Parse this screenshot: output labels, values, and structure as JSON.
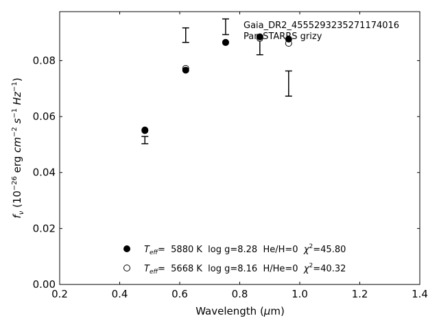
{
  "chart_data": {
    "type": "scatter",
    "title_lines": [
      "Gaia_DR2_4555293235271174016",
      "Pan-STARRS grizy"
    ],
    "xlabel": "Wavelength (μm)",
    "ylabel": "fν (10⁻²⁶ erg cm⁻² s⁻¹ Hz⁻¹)",
    "xlim": [
      0.2,
      1.4
    ],
    "ylim": [
      0.0,
      0.0975
    ],
    "x_ticks": [
      0.2,
      0.4,
      0.6,
      0.8,
      1.0,
      1.2,
      1.4
    ],
    "x_tick_labels": [
      "0.2",
      "0.4",
      "0.6",
      "0.8",
      "1.0",
      "1.2",
      "1.4"
    ],
    "y_ticks": [
      0.0,
      0.02,
      0.04,
      0.06,
      0.08
    ],
    "y_tick_labels": [
      "0.00",
      "0.02",
      "0.04",
      "0.06",
      "0.08"
    ],
    "grid": false,
    "legend_placement": "lower-center",
    "observed": {
      "x": [
        0.484,
        0.62,
        0.753,
        0.867,
        0.963
      ],
      "y": [
        0.0516,
        0.0891,
        0.0921,
        0.0855,
        0.0718
      ],
      "yerr": [
        0.0013,
        0.0026,
        0.0028,
        0.0034,
        0.0045
      ]
    },
    "series": [
      {
        "name": "Teff= 5880 K log g=8.28 He/H=0 χ²=45.80",
        "legend_parts": {
          "t": "T",
          "sub": "eff",
          "rest": "=  5880 K  log g=8.28  He/H=0  ",
          "chi": "χ",
          "sup": "2",
          "val": "=45.80"
        },
        "marker": "filled-circle",
        "x": [
          0.484,
          0.62,
          0.753,
          0.867,
          0.963
        ],
        "y": [
          0.0552,
          0.0766,
          0.0865,
          0.0885,
          0.0877
        ]
      },
      {
        "name": "Teff= 5668 K log g=8.16 H/He=0 χ²=40.32",
        "legend_parts": {
          "t": "T",
          "sub": "eff",
          "rest": "=  5668 K  log g=8.16  H/He=0  ",
          "chi": "χ",
          "sup": "2",
          "val": "=40.32"
        },
        "marker": "open-circle",
        "x": [
          0.484,
          0.62,
          0.753,
          0.867,
          0.963
        ],
        "y": [
          0.055,
          0.0772,
          0.0865,
          0.088,
          0.0862
        ]
      }
    ]
  },
  "colors": {
    "marker": "#000000",
    "background": "#ffffff"
  }
}
